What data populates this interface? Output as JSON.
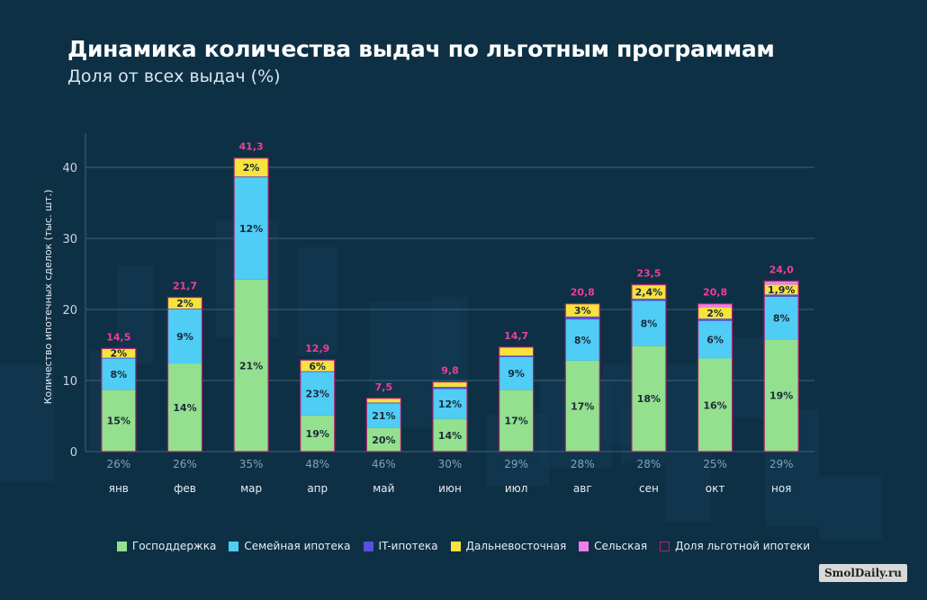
{
  "title": "Динамика количества выдач по льготным программам",
  "subtitle": "Доля от всех выдач (%)",
  "watermark": "SmolDaily.ru",
  "chart_data": {
    "type": "bar",
    "stacked": true,
    "categories": [
      "янв",
      "фев",
      "мар",
      "апр",
      "май",
      "июн",
      "июл",
      "авг",
      "сен",
      "окт",
      "ноя"
    ],
    "ylabel": "Количество ипотечных сделок (тыс. шт.)",
    "ylim": [
      0,
      45
    ],
    "yticks": [
      0,
      10,
      20,
      30,
      40
    ],
    "grid": true,
    "legend_position": "bottom",
    "totals": [
      "14,5",
      "21,7",
      "41,3",
      "12,9",
      "7,5",
      "9,8",
      "14,7",
      "20,8",
      "23,5",
      "20,8",
      "24,0"
    ],
    "share_of_all": [
      "26%",
      "26%",
      "35%",
      "48%",
      "46%",
      "30%",
      "29%",
      "28%",
      "28%",
      "25%",
      "29%"
    ],
    "series": [
      {
        "name": "Господдержка",
        "color": "#93e08e",
        "values": [
          8.7,
          12.4,
          24.2,
          5.1,
          3.3,
          4.6,
          8.7,
          12.8,
          14.9,
          13.1,
          15.8
        ],
        "labels": [
          "15%",
          "14%",
          "21%",
          "19%",
          "20%",
          "14%",
          "17%",
          "17%",
          "18%",
          "16%",
          "19%"
        ]
      },
      {
        "name": "Семейная ипотека",
        "color": "#4fcdf5",
        "values": [
          4.4,
          7.6,
          14.4,
          6.1,
          3.5,
          4.2,
          4.6,
          5.8,
          6.3,
          5.3,
          6.0
        ],
        "labels": [
          "8%",
          "9%",
          "12%",
          "23%",
          "21%",
          "12%",
          "9%",
          "8%",
          "8%",
          "6%",
          "8%"
        ]
      },
      {
        "name": "IT-ипотека",
        "color": "#5b4fe0",
        "values": [
          0.1,
          0.1,
          0.1,
          0.1,
          0.1,
          0.3,
          0.2,
          0.4,
          0.3,
          0.3,
          0.3
        ],
        "labels": [
          "",
          "",
          "",
          "",
          "",
          "",
          "",
          "",
          "",
          "",
          ""
        ]
      },
      {
        "name": "Дальневосточная",
        "color": "#f6e33d",
        "values": [
          1.3,
          1.6,
          2.6,
          1.5,
          0.6,
          0.7,
          1.2,
          1.8,
          1.9,
          1.6,
          1.4
        ],
        "labels": [
          "2%",
          "2%",
          "2%",
          "6%",
          "",
          "",
          "",
          "3%",
          "2,4%",
          "2%",
          "1,9%"
        ]
      },
      {
        "name": "Сельская",
        "color": "#ee7fea",
        "values": [
          0.0,
          0.0,
          0.0,
          0.1,
          0.0,
          0.0,
          0.0,
          0.0,
          0.1,
          0.5,
          0.5
        ],
        "labels": [
          "",
          "",
          "",
          "",
          "",
          "",
          "",
          "",
          "",
          "",
          ""
        ]
      }
    ],
    "outline_series": {
      "name": "Доля льготной ипотеки",
      "color": "#b0226e"
    }
  }
}
